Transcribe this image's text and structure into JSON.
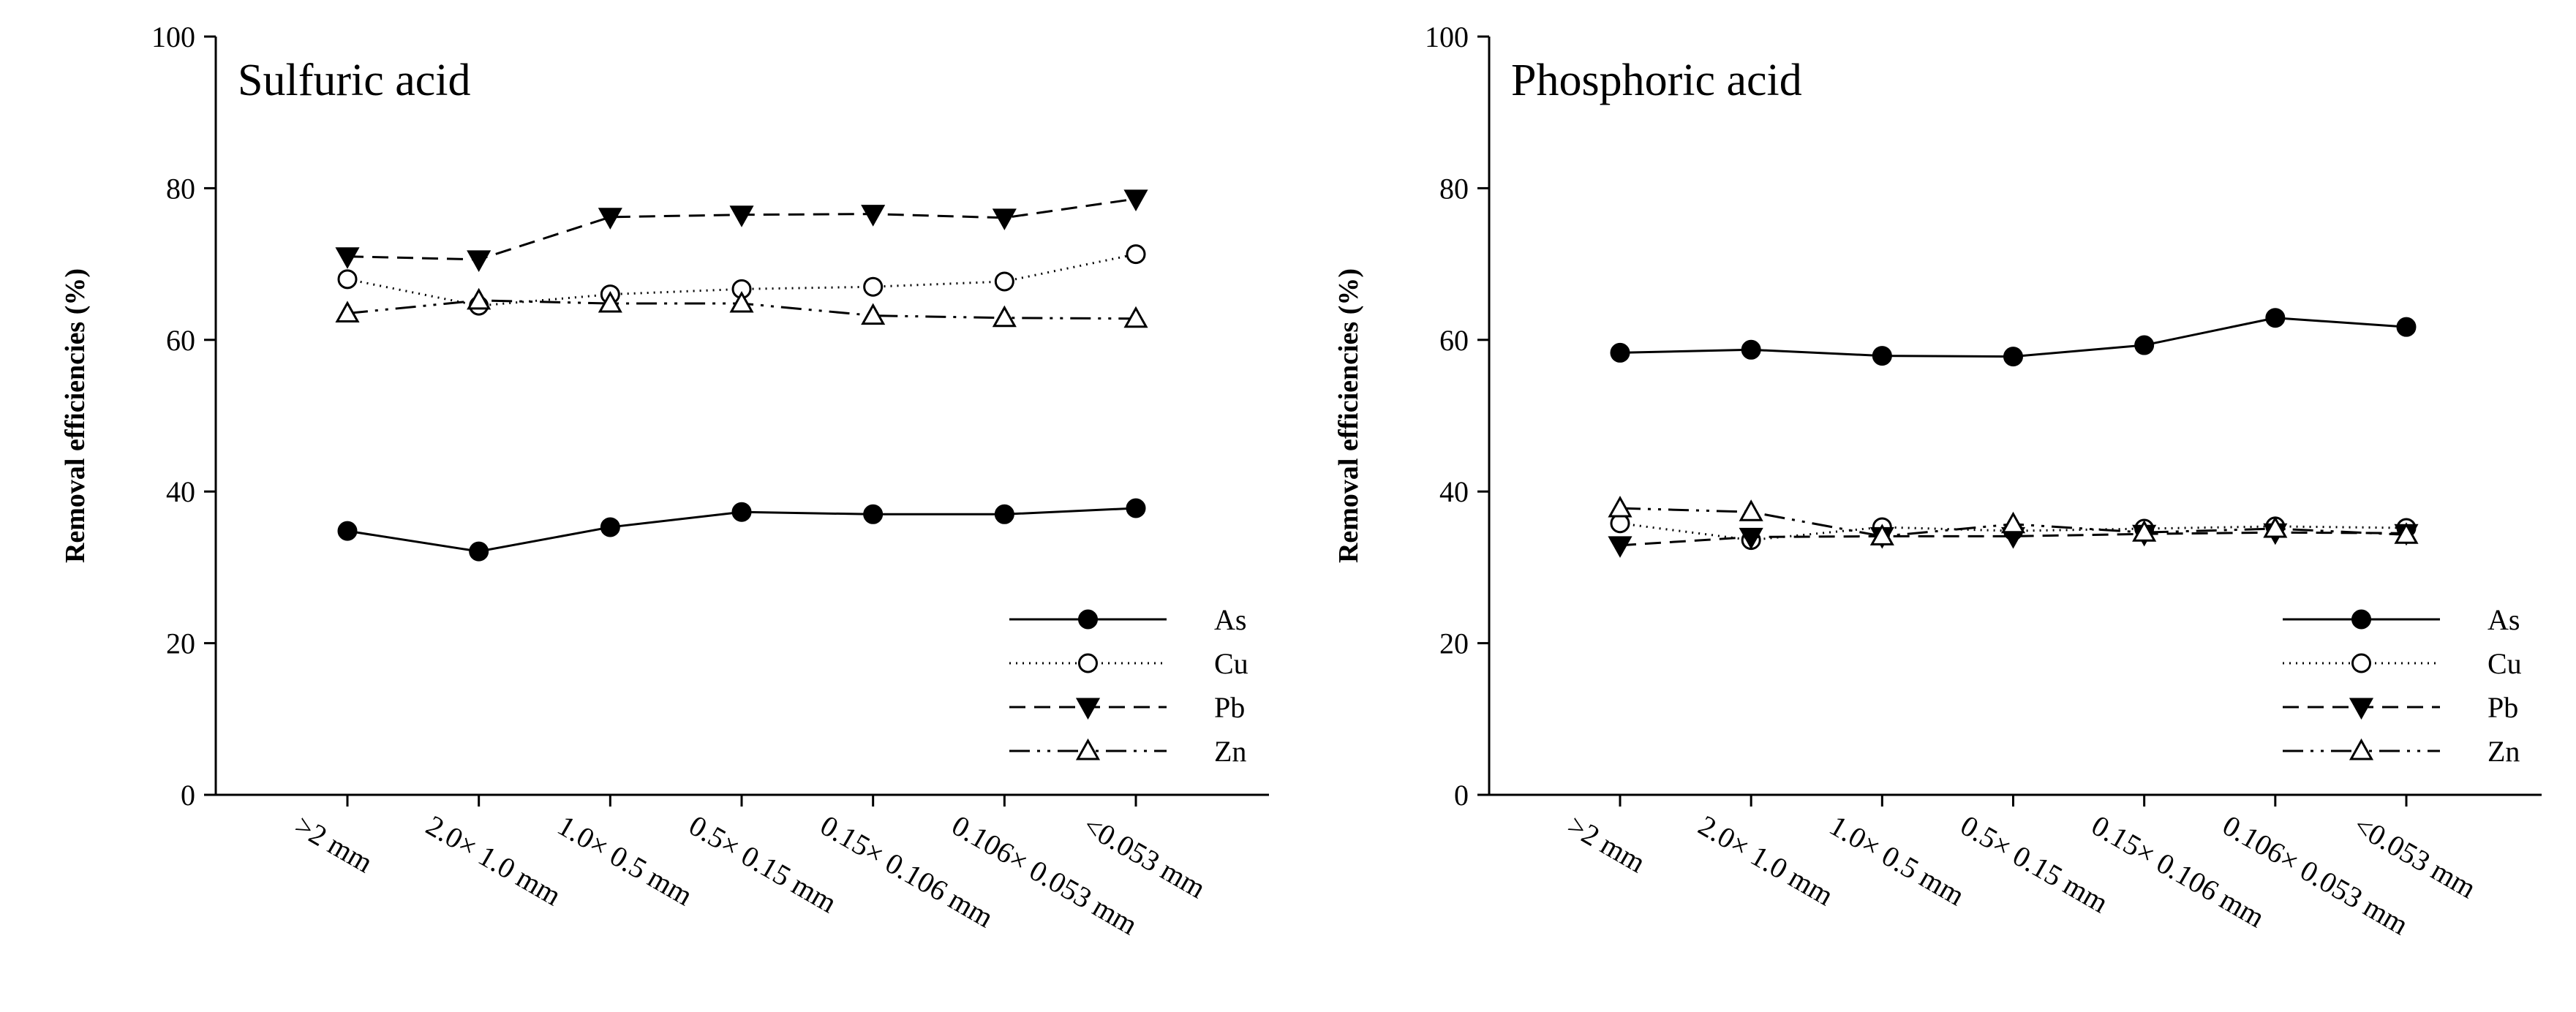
{
  "chart_data": [
    {
      "type": "line",
      "title": "Sulfuric acid",
      "xlabel": "",
      "ylabel": "Removal efficiencies (%)",
      "ylim": [
        0,
        100
      ],
      "yticks": [
        0,
        20,
        40,
        60,
        80,
        100
      ],
      "categories": [
        ">2 mm",
        "2.0× 1.0 mm",
        "1.0× 0.5 mm",
        "0.5× 0.15 mm",
        "0.15× 0.106 mm",
        "0.106× 0.053 mm",
        "<0.053 mm"
      ],
      "legend_position": "bottom-right",
      "series": [
        {
          "name": "As",
          "marker": "filled-circle",
          "line": "solid",
          "values": [
            34.8,
            32.1,
            35.3,
            37.3,
            37.0,
            37.0,
            37.8
          ]
        },
        {
          "name": "Cu",
          "marker": "open-circle",
          "line": "dotted",
          "values": [
            68.0,
            64.5,
            66.0,
            66.7,
            67.0,
            67.7,
            71.3
          ]
        },
        {
          "name": "Pb",
          "marker": "filled-triangle-down",
          "line": "dashed",
          "values": [
            71.0,
            70.6,
            76.2,
            76.5,
            76.6,
            76.1,
            78.6
          ]
        },
        {
          "name": "Zn",
          "marker": "open-triangle-up",
          "line": "dash-dot-dot",
          "values": [
            63.5,
            65.2,
            64.8,
            64.8,
            63.2,
            62.9,
            62.8
          ]
        }
      ]
    },
    {
      "type": "line",
      "title": "Phosphoric acid",
      "xlabel": "",
      "ylabel": "Removal efficiencies (%)",
      "ylim": [
        0,
        100
      ],
      "yticks": [
        0,
        20,
        40,
        60,
        80,
        100
      ],
      "categories": [
        ">2 mm",
        "2.0× 1.0 mm",
        "1.0× 0.5 mm",
        "0.5× 0.15 mm",
        "0.15× 0.106 mm",
        "0.106× 0.053 mm",
        "<0.053 mm"
      ],
      "legend_position": "bottom-right",
      "series": [
        {
          "name": "As",
          "marker": "filled-circle",
          "line": "solid",
          "values": [
            58.3,
            58.7,
            57.9,
            57.8,
            59.3,
            62.9,
            61.7
          ]
        },
        {
          "name": "Cu",
          "marker": "open-circle",
          "line": "dotted",
          "values": [
            35.8,
            33.6,
            35.3,
            34.8,
            35.1,
            35.4,
            35.2
          ]
        },
        {
          "name": "Pb",
          "marker": "filled-triangle-down",
          "line": "dashed",
          "values": [
            32.9,
            34.0,
            34.1,
            34.1,
            34.4,
            34.6,
            34.5
          ]
        },
        {
          "name": "Zn",
          "marker": "open-triangle-up",
          "line": "dash-dot-dot",
          "values": [
            37.8,
            37.3,
            34.1,
            35.7,
            34.6,
            35.1,
            34.3
          ]
        }
      ]
    }
  ]
}
